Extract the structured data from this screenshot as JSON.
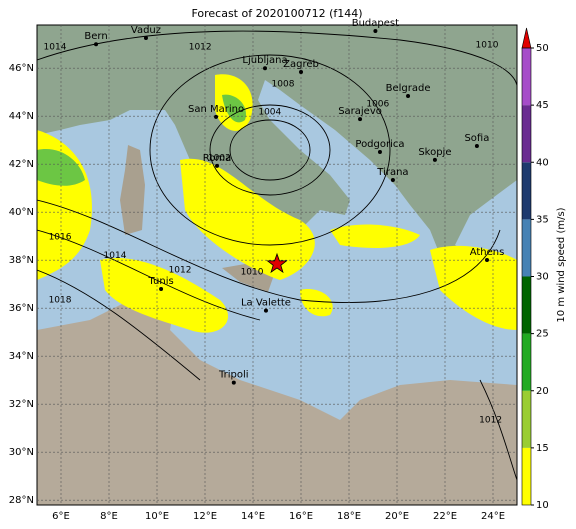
{
  "title": "Forecast of 2020100712 (f144)",
  "map": {
    "lon_range": [
      5,
      25
    ],
    "lat_range": [
      27.8,
      47.8
    ],
    "lon_ticks": [
      {
        "value": 6,
        "label": "6°E"
      },
      {
        "value": 8,
        "label": "8°E"
      },
      {
        "value": 10,
        "label": "10°E"
      },
      {
        "value": 12,
        "label": "12°E"
      },
      {
        "value": 14,
        "label": "14°E"
      },
      {
        "value": 16,
        "label": "16°E"
      },
      {
        "value": 18,
        "label": "18°E"
      },
      {
        "value": 20,
        "label": "20°E"
      },
      {
        "value": 22,
        "label": "22°E"
      },
      {
        "value": 24,
        "label": "24°E"
      }
    ],
    "lat_ticks": [
      {
        "value": 28,
        "label": "28°N"
      },
      {
        "value": 30,
        "label": "30°N"
      },
      {
        "value": 32,
        "label": "32°N"
      },
      {
        "value": 34,
        "label": "34°N"
      },
      {
        "value": 36,
        "label": "36°N"
      },
      {
        "value": 38,
        "label": "38°N"
      },
      {
        "value": 40,
        "label": "40°N"
      },
      {
        "value": 42,
        "label": "42°N"
      },
      {
        "value": 44,
        "label": "44°N"
      },
      {
        "value": 46,
        "label": "46°N"
      }
    ],
    "cities": [
      {
        "name": "Bern",
        "lon": 7.46,
        "lat": 47.0
      },
      {
        "name": "Vaduz",
        "lon": 9.54,
        "lat": 47.26
      },
      {
        "name": "Budapest",
        "lon": 19.1,
        "lat": 47.55
      },
      {
        "name": "Ljubljana",
        "lon": 14.5,
        "lat": 46.0
      },
      {
        "name": "Zagreb",
        "lon": 16.0,
        "lat": 45.84
      },
      {
        "name": "Belgrade",
        "lon": 20.46,
        "lat": 44.84
      },
      {
        "name": "San Marino",
        "lon": 12.46,
        "lat": 43.97
      },
      {
        "name": "Sarajevo",
        "lon": 18.46,
        "lat": 43.88
      },
      {
        "name": "Sofia",
        "lon": 23.33,
        "lat": 42.76
      },
      {
        "name": "Podgorica",
        "lon": 19.29,
        "lat": 42.51
      },
      {
        "name": "Skopje",
        "lon": 21.58,
        "lat": 42.18
      },
      {
        "name": "Roma",
        "lon": 12.5,
        "lat": 41.93
      },
      {
        "name": "Tirana",
        "lon": 19.83,
        "lat": 41.34
      },
      {
        "name": "Athens",
        "lon": 23.75,
        "lat": 38.01
      },
      {
        "name": "Tunis",
        "lon": 10.17,
        "lat": 36.8
      },
      {
        "name": "La Valette",
        "lon": 14.54,
        "lat": 35.9
      },
      {
        "name": "Tripoli",
        "lon": 13.2,
        "lat": 32.9
      }
    ],
    "isobar_labels": [
      {
        "value": 1014,
        "lon": 5.75,
        "lat": 46.88
      },
      {
        "value": 1012,
        "lon": 11.8,
        "lat": 46.88
      },
      {
        "value": 1010,
        "lon": 23.75,
        "lat": 46.97
      },
      {
        "value": 1008,
        "lon": 15.25,
        "lat": 45.34
      },
      {
        "value": 1004,
        "lon": 14.7,
        "lat": 44.18
      },
      {
        "value": 1006,
        "lon": 19.2,
        "lat": 44.5
      },
      {
        "value": 1002,
        "lon": 12.6,
        "lat": 42.26
      },
      {
        "value": 1016,
        "lon": 5.96,
        "lat": 38.97
      },
      {
        "value": 1014,
        "lon": 8.25,
        "lat": 38.2
      },
      {
        "value": 1012,
        "lon": 10.96,
        "lat": 37.6
      },
      {
        "value": 1010,
        "lon": 13.96,
        "lat": 37.5
      },
      {
        "value": 1018,
        "lon": 5.96,
        "lat": 36.34
      },
      {
        "value": 1012,
        "lon": 23.9,
        "lat": 31.34
      }
    ],
    "marker": {
      "lon": 15.0,
      "lat": 37.84,
      "color": "#e00000"
    }
  },
  "colorbar": {
    "label": "10 m wind speed (m/s)",
    "range": [
      10,
      50
    ],
    "ticks": [
      10,
      15,
      20,
      25,
      30,
      35,
      40,
      45,
      50
    ],
    "colors": [
      "#ffff00",
      "#9acd32",
      "#22aa22",
      "#006400",
      "#4682b4",
      "#1e3a6e",
      "#6a2c91",
      "#a64dc9"
    ],
    "extend_color": "#e00000"
  }
}
